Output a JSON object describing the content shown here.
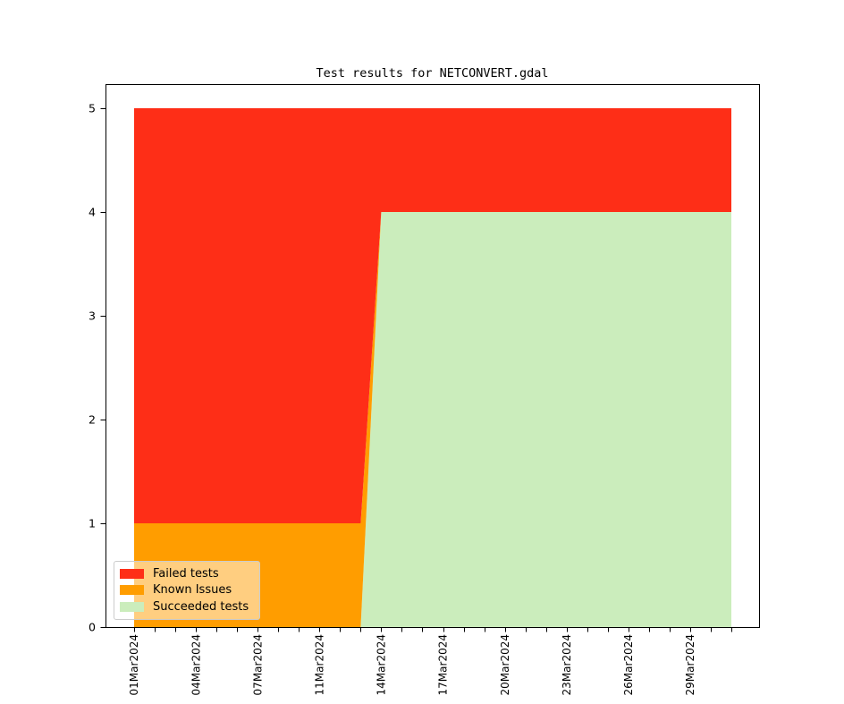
{
  "figure": {
    "background": "#ffffff",
    "axes_edge_color": "#000000",
    "tick_color": "#000000",
    "text_color": "#000000"
  },
  "chart_data": {
    "type": "area",
    "stacked": true,
    "title": "Test results for NETCONVERT.gdal",
    "xlabel": "",
    "ylabel": "",
    "grid": false,
    "x": [
      "01Mar2024",
      "02Mar2024",
      "03Mar2024",
      "04Mar2024",
      "05Mar2024",
      "06Mar2024",
      "07Mar2024",
      "08Mar2024",
      "09Mar2024",
      "11Mar2024",
      "12Mar2024",
      "13Mar2024",
      "14Mar2024",
      "15Mar2024",
      "16Mar2024",
      "17Mar2024",
      "18Mar2024",
      "19Mar2024",
      "20Mar2024",
      "21Mar2024",
      "22Mar2024",
      "23Mar2024",
      "24Mar2024",
      "25Mar2024",
      "26Mar2024",
      "27Mar2024",
      "28Mar2024",
      "29Mar2024",
      "30Mar2024",
      "31Mar2024"
    ],
    "x_label_every": 3,
    "x_labeled_ticks": [
      "01Mar2024",
      "04Mar2024",
      "07Mar2024",
      "11Mar2024",
      "14Mar2024",
      "17Mar2024",
      "20Mar2024",
      "23Mar2024",
      "26Mar2024",
      "29Mar2024"
    ],
    "yticks": [
      0,
      1,
      2,
      3,
      4,
      5
    ],
    "ylim": [
      0,
      5.23
    ],
    "series": [
      {
        "name": "Failed tests",
        "color": "#fe2e17",
        "values": [
          4,
          4,
          4,
          4,
          4,
          4,
          4,
          4,
          4,
          4,
          4,
          4,
          1,
          1,
          1,
          1,
          1,
          1,
          1,
          1,
          1,
          1,
          1,
          1,
          1,
          1,
          1,
          1,
          1,
          1
        ]
      },
      {
        "name": "Known Issues",
        "color": "#ff9d00",
        "values": [
          1,
          1,
          1,
          1,
          1,
          1,
          1,
          1,
          1,
          1,
          1,
          1,
          0,
          0,
          0,
          0,
          0,
          0,
          0,
          0,
          0,
          0,
          0,
          0,
          0,
          0,
          0,
          0,
          0,
          0
        ]
      },
      {
        "name": "Succeeded tests",
        "color": "#cbedbc",
        "values": [
          0,
          0,
          0,
          0,
          0,
          0,
          0,
          0,
          0,
          0,
          0,
          0,
          4,
          4,
          4,
          4,
          4,
          4,
          4,
          4,
          4,
          4,
          4,
          4,
          4,
          4,
          4,
          4,
          4,
          4
        ]
      }
    ],
    "stack_bottom_to_top": [
      "Succeeded tests",
      "Known Issues",
      "Failed tests"
    ],
    "legend": {
      "position": "lower left",
      "entries": [
        "Failed tests",
        "Known Issues",
        "Succeeded tests"
      ]
    }
  }
}
